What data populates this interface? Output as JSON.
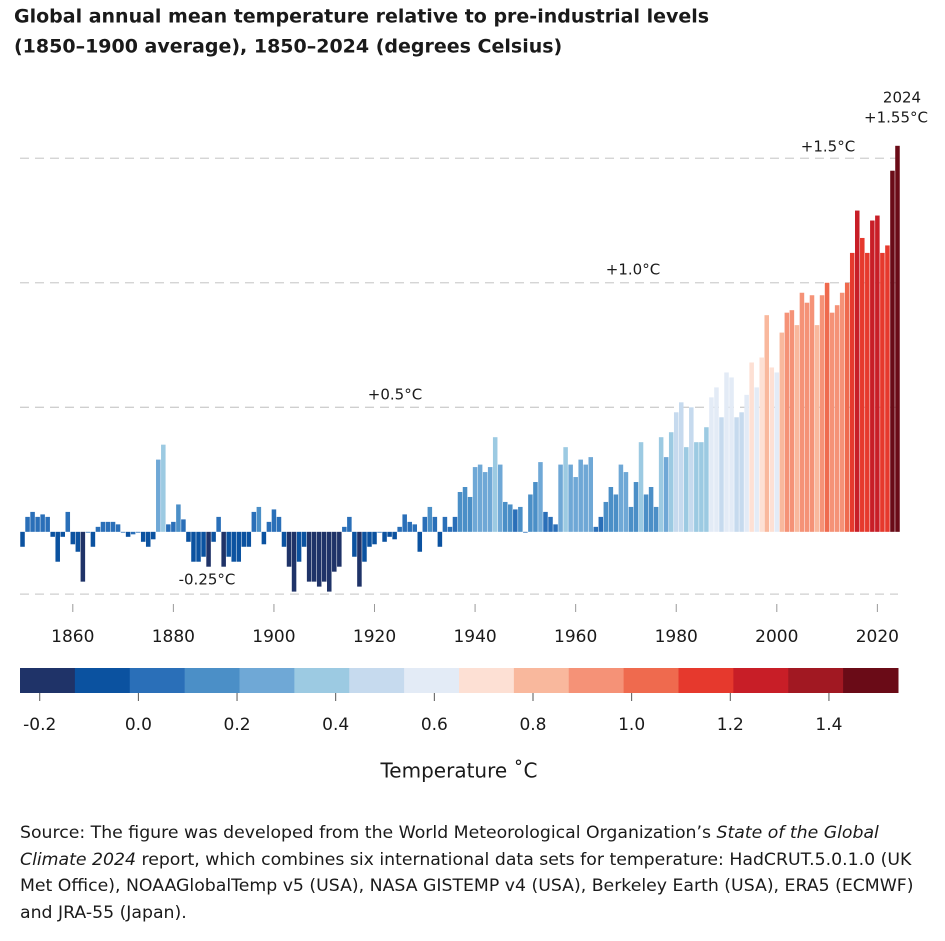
{
  "chart_data": {
    "type": "bar",
    "title": [
      "Global annual mean temperature relative to pre-industrial levels",
      "(1850–1900 average), 1850–2024 (degrees Celsius)"
    ],
    "x": [
      1850,
      1851,
      1852,
      1853,
      1854,
      1855,
      1856,
      1857,
      1858,
      1859,
      1860,
      1861,
      1862,
      1863,
      1864,
      1865,
      1866,
      1867,
      1868,
      1869,
      1870,
      1871,
      1872,
      1873,
      1874,
      1875,
      1876,
      1877,
      1878,
      1879,
      1880,
      1881,
      1882,
      1883,
      1884,
      1885,
      1886,
      1887,
      1888,
      1889,
      1890,
      1891,
      1892,
      1893,
      1894,
      1895,
      1896,
      1897,
      1898,
      1899,
      1900,
      1901,
      1902,
      1903,
      1904,
      1905,
      1906,
      1907,
      1908,
      1909,
      1910,
      1911,
      1912,
      1913,
      1914,
      1915,
      1916,
      1917,
      1918,
      1919,
      1920,
      1921,
      1922,
      1923,
      1924,
      1925,
      1926,
      1927,
      1928,
      1929,
      1930,
      1931,
      1932,
      1933,
      1934,
      1935,
      1936,
      1937,
      1938,
      1939,
      1940,
      1941,
      1942,
      1943,
      1944,
      1945,
      1946,
      1947,
      1948,
      1949,
      1950,
      1951,
      1952,
      1953,
      1954,
      1955,
      1956,
      1957,
      1958,
      1959,
      1960,
      1961,
      1962,
      1963,
      1964,
      1965,
      1966,
      1967,
      1968,
      1969,
      1970,
      1971,
      1972,
      1973,
      1974,
      1975,
      1976,
      1977,
      1978,
      1979,
      1980,
      1981,
      1982,
      1983,
      1984,
      1985,
      1986,
      1987,
      1988,
      1989,
      1990,
      1991,
      1992,
      1993,
      1994,
      1995,
      1996,
      1997,
      1998,
      1999,
      2000,
      2001,
      2002,
      2003,
      2004,
      2005,
      2006,
      2007,
      2008,
      2009,
      2010,
      2011,
      2012,
      2013,
      2014,
      2015,
      2016,
      2017,
      2018,
      2019,
      2020,
      2021,
      2022,
      2023,
      2024
    ],
    "values": [
      -0.06,
      0.06,
      0.08,
      0.06,
      0.07,
      0.06,
      -0.02,
      -0.12,
      -0.02,
      0.08,
      -0.05,
      -0.08,
      -0.2,
      0.0,
      -0.06,
      0.02,
      0.04,
      0.04,
      0.04,
      0.03,
      0.0,
      -0.02,
      -0.01,
      0.0,
      -0.04,
      -0.06,
      -0.03,
      0.29,
      0.35,
      0.03,
      0.04,
      0.11,
      0.05,
      -0.04,
      -0.12,
      -0.12,
      -0.1,
      -0.14,
      -0.04,
      0.06,
      -0.14,
      -0.1,
      -0.12,
      -0.12,
      -0.06,
      -0.06,
      0.08,
      0.1,
      -0.05,
      0.04,
      0.09,
      0.06,
      -0.06,
      -0.14,
      -0.24,
      -0.12,
      -0.06,
      -0.2,
      -0.2,
      -0.22,
      -0.2,
      -0.24,
      -0.16,
      -0.14,
      0.02,
      0.06,
      -0.1,
      -0.22,
      -0.12,
      -0.06,
      -0.05,
      0.0,
      -0.04,
      -0.02,
      -0.03,
      0.02,
      0.07,
      0.04,
      0.03,
      -0.08,
      0.06,
      0.1,
      0.06,
      -0.06,
      0.06,
      0.02,
      0.06,
      0.16,
      0.18,
      0.14,
      0.26,
      0.27,
      0.24,
      0.26,
      0.38,
      0.27,
      0.12,
      0.11,
      0.09,
      0.1,
      0.0,
      0.15,
      0.2,
      0.28,
      0.08,
      0.06,
      0.03,
      0.27,
      0.34,
      0.27,
      0.22,
      0.29,
      0.27,
      0.3,
      0.02,
      0.06,
      0.12,
      0.18,
      0.15,
      0.27,
      0.24,
      0.1,
      0.2,
      0.36,
      0.15,
      0.18,
      0.1,
      0.38,
      0.3,
      0.4,
      0.48,
      0.52,
      0.34,
      0.5,
      0.36,
      0.36,
      0.42,
      0.54,
      0.58,
      0.46,
      0.64,
      0.62,
      0.46,
      0.48,
      0.55,
      0.68,
      0.58,
      0.7,
      0.87,
      0.66,
      0.64,
      0.8,
      0.88,
      0.89,
      0.83,
      0.96,
      0.92,
      0.95,
      0.83,
      0.95,
      1.0,
      0.88,
      0.91,
      0.96,
      1.0,
      1.12,
      1.29,
      1.18,
      1.12,
      1.25,
      1.27,
      1.12,
      1.15,
      1.45,
      1.55
    ],
    "xlim": [
      1849.5,
      2024.5
    ],
    "xticks": [
      1860,
      1880,
      1900,
      1920,
      1940,
      1960,
      1980,
      2000,
      2020
    ],
    "ylim": [
      -0.35,
      1.75
    ],
    "yticks": [
      {
        "value": -0.25,
        "label": "-0.25°C"
      },
      {
        "value": 0.5,
        "label": "+0.5°C"
      },
      {
        "value": 1.0,
        "label": "+1.0°C"
      },
      {
        "value": 1.5,
        "label": "+1.5°C"
      }
    ],
    "grid": true,
    "annotation": {
      "year": "2024",
      "value": "+1.55°C"
    },
    "colorbar": {
      "title": "Temperature ˚C",
      "xlim": [
        -0.24,
        1.54
      ],
      "xticks": [
        -0.2,
        {
          "value": 0,
          "label": "0.0"
        },
        0.2,
        0.4,
        0.6,
        0.8,
        {
          "value": 1,
          "label": "1.0"
        },
        1.2,
        1.4
      ],
      "colors": [
        "#1f3368",
        "#0b52a0",
        "#2a6fb8",
        "#4b8fc7",
        "#6fa8d6",
        "#9ccae2",
        "#c6daee",
        "#e3ebf6",
        "#fde0d4",
        "#f9b89d",
        "#f59277",
        "#ef6a4e",
        "#e6392d",
        "#c81e27",
        "#a11822",
        "#6a0b17"
      ]
    },
    "source": [
      "Source: The figure was developed from the World Meteorological Organization’s ",
      "State of the Global Climate 2024",
      " report, which combines six international data sets for temperature: HadCRUT.5.0.1.0 (UK Met Office), NOAAGlobalTemp v5 (USA), NASA GISTEMP v4 (USA), Berkeley Earth (USA), ERA5 (ECMWF) and JRA-55 (Japan)."
    ]
  }
}
